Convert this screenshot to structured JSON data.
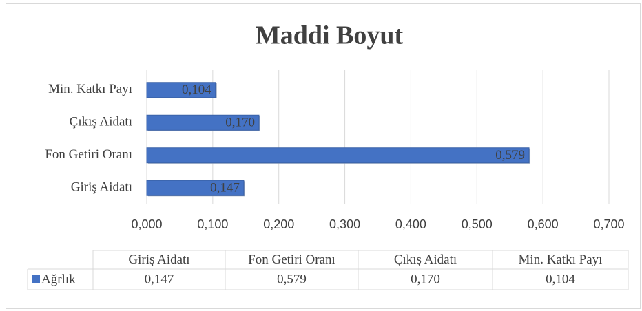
{
  "chart_data": {
    "type": "bar",
    "orientation": "horizontal",
    "title": "Maddi Boyut",
    "categories": [
      "Giriş Aidatı",
      "Fon Getiri Oranı",
      "Çıkış Aidatı",
      "Min. Katkı Payı"
    ],
    "series": [
      {
        "name": "Ağrlık",
        "color": "#4472c4",
        "values": [
          0.147,
          0.579,
          0.17,
          0.104
        ],
        "value_labels": [
          "0,147",
          "0,579",
          "0,170",
          "0,104"
        ]
      }
    ],
    "xlim": [
      0,
      0.7
    ],
    "xticks": [
      {
        "value": 0,
        "label": "0,000"
      },
      {
        "value": 0.1,
        "label": "0,100"
      },
      {
        "value": 0.2,
        "label": "0,200"
      },
      {
        "value": 0.3,
        "label": "0,300"
      },
      {
        "value": 0.4,
        "label": "0,400"
      },
      {
        "value": 0.5,
        "label": "0,500"
      },
      {
        "value": 0.6,
        "label": "0,600"
      },
      {
        "value": 0.7,
        "label": "0,700"
      }
    ],
    "grid": true,
    "data_table": true
  }
}
